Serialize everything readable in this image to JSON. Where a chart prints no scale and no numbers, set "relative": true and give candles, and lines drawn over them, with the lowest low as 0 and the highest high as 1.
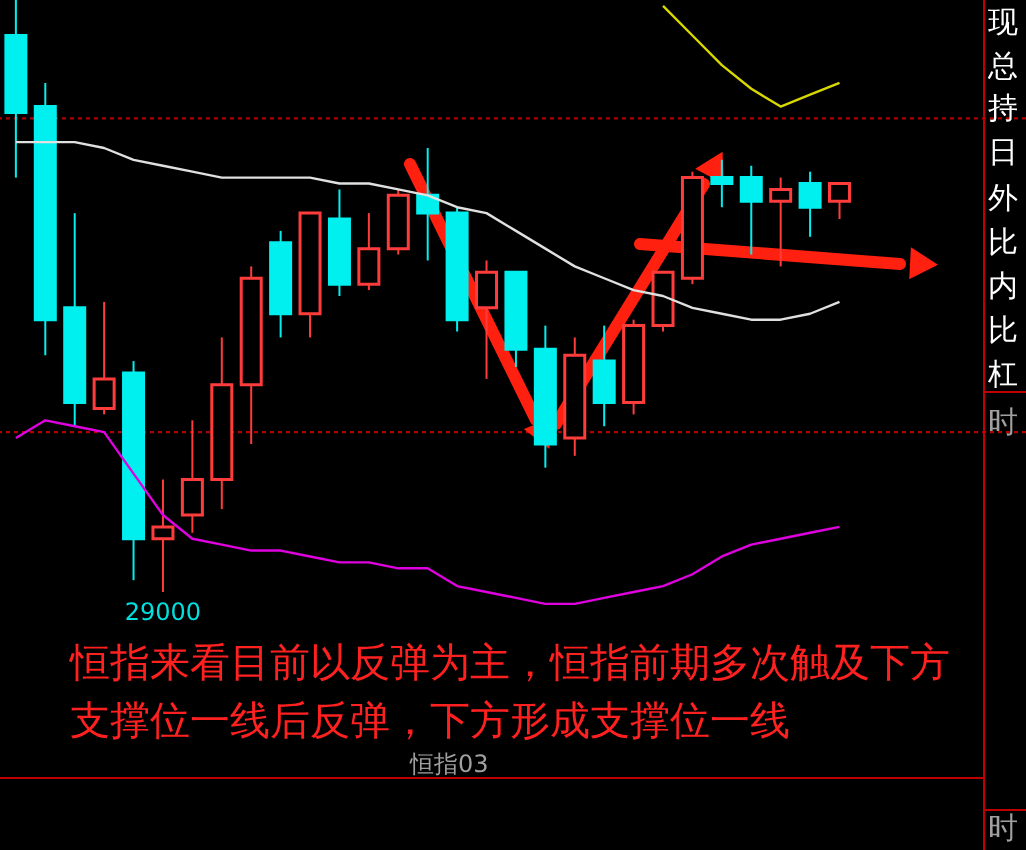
{
  "chart_data": {
    "type": "candlestick",
    "relative": true,
    "categories": [
      null,
      null,
      null,
      null,
      null,
      null,
      null,
      null,
      null,
      null,
      null,
      null,
      null,
      null,
      null,
      null,
      null,
      null,
      null,
      null,
      null,
      null,
      null,
      null,
      null,
      null,
      null,
      null,
      null
    ],
    "ohlc": [
      [
        0.94,
        1.0,
        0.7,
        0.81
      ],
      [
        0.82,
        0.86,
        0.4,
        0.46
      ],
      [
        0.48,
        0.64,
        0.28,
        0.32
      ],
      [
        0.31,
        0.49,
        0.3,
        0.36
      ],
      [
        0.37,
        0.39,
        0.02,
        0.09
      ],
      [
        0.09,
        0.19,
        0.0,
        0.11
      ],
      [
        0.13,
        0.29,
        0.1,
        0.19
      ],
      [
        0.19,
        0.43,
        0.14,
        0.35
      ],
      [
        0.35,
        0.55,
        0.25,
        0.53
      ],
      [
        0.59,
        0.61,
        0.43,
        0.47
      ],
      [
        0.47,
        0.64,
        0.43,
        0.64
      ],
      [
        0.63,
        0.68,
        0.5,
        0.52
      ],
      [
        0.52,
        0.64,
        0.51,
        0.58
      ],
      [
        0.58,
        0.68,
        0.57,
        0.67
      ],
      [
        0.67,
        0.75,
        0.56,
        0.64
      ],
      [
        0.64,
        0.65,
        0.44,
        0.46
      ],
      [
        0.48,
        0.56,
        0.36,
        0.54
      ],
      [
        0.54,
        0.54,
        0.38,
        0.41
      ],
      [
        0.41,
        0.45,
        0.21,
        0.25
      ],
      [
        0.26,
        0.43,
        0.23,
        0.4
      ],
      [
        0.39,
        0.45,
        0.28,
        0.32
      ],
      [
        0.32,
        0.46,
        0.3,
        0.45
      ],
      [
        0.45,
        0.54,
        0.44,
        0.54
      ],
      [
        0.53,
        0.71,
        0.52,
        0.7
      ],
      [
        0.7,
        0.73,
        0.65,
        0.69
      ],
      [
        0.7,
        0.72,
        0.57,
        0.66
      ],
      [
        0.66,
        0.7,
        0.55,
        0.68
      ],
      [
        0.69,
        0.71,
        0.6,
        0.65
      ],
      [
        0.66,
        0.69,
        0.63,
        0.69
      ]
    ],
    "colors": [
      "#00f0f0",
      "#00f0f0",
      "#00f0f0",
      "#ff3c3c",
      "#00f0f0",
      "#ff3c3c",
      "#ff3c3c",
      "#ff3c3c",
      "#ff3c3c",
      "#00f0f0",
      "#ff3c3c",
      "#00f0f0",
      "#ff3c3c",
      "#ff3c3c",
      "#00f0f0",
      "#00f0f0",
      "#ff3c3c",
      "#00f0f0",
      "#00f0f0",
      "#ff3c3c",
      "#00f0f0",
      "#ff3c3c",
      "#ff3c3c",
      "#ff3c3c",
      "#00f0f0",
      "#00f0f0",
      "#ff3c3c",
      "#00f0f0",
      "#ff3c3c"
    ],
    "series": [
      {
        "type": "line",
        "color": "#e0e0e0",
        "values": [
          0.76,
          0.76,
          0.76,
          0.75,
          0.73,
          0.72,
          0.71,
          0.7,
          0.7,
          0.7,
          0.7,
          0.69,
          0.69,
          0.68,
          0.67,
          0.65,
          0.64,
          0.61,
          0.58,
          0.55,
          0.53,
          0.51,
          0.5,
          0.48,
          0.47,
          0.46,
          0.46,
          0.47,
          0.49
        ]
      },
      {
        "type": "line",
        "color": "#e000e0",
        "values": [
          0.26,
          0.29,
          0.28,
          0.27,
          0.2,
          0.13,
          0.09,
          0.08,
          0.07,
          0.07,
          0.06,
          0.05,
          0.05,
          0.04,
          0.04,
          0.01,
          0.0,
          -0.01,
          -0.02,
          -0.02,
          -0.01,
          0.0,
          0.01,
          0.03,
          0.06,
          0.08,
          0.09,
          0.1,
          0.11
        ]
      },
      {
        "type": "line",
        "color": "#d8d800",
        "values": [
          null,
          null,
          null,
          null,
          null,
          null,
          null,
          null,
          null,
          null,
          null,
          null,
          null,
          null,
          null,
          null,
          null,
          null,
          null,
          null,
          null,
          null,
          0.99,
          0.94,
          0.89,
          0.85,
          0.82,
          0.84,
          0.86
        ]
      }
    ],
    "ref_lines": [
      {
        "axis": "y",
        "value": 0.8,
        "color": "#b00000",
        "line_style": "dotted"
      },
      {
        "axis": "y",
        "value": 0.27,
        "color": "#b00000",
        "line_style": "dotted"
      }
    ],
    "annotations": [
      "29000",
      "恒指来看目前以反弹为主，恒指前期多次触及下方支撑位一线后反弹，下方形成支撑位一线",
      "恒指03",
      "现",
      "总",
      "持",
      "日",
      "外",
      "比",
      "内",
      "比",
      "杠",
      "时",
      "时"
    ]
  }
}
